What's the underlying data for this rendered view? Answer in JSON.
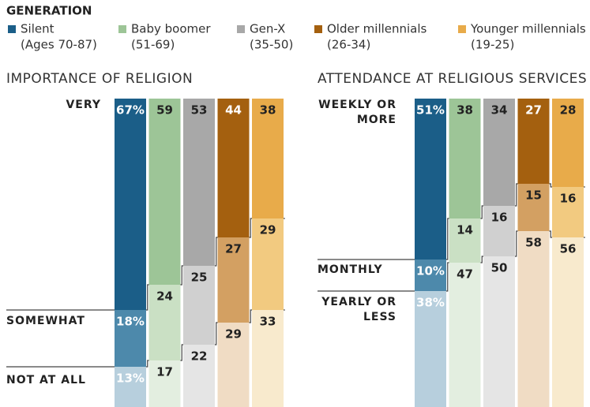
{
  "legend": {
    "title": "GENERATION",
    "entries": [
      {
        "name": "Silent",
        "ages": "(Ages 70-87)",
        "color": "#1b5e88"
      },
      {
        "name": "Baby boomer",
        "ages": "(51-69)",
        "color": "#9dc597"
      },
      {
        "name": "Gen-X",
        "ages": "(35-50)",
        "color": "#a8a8a8"
      },
      {
        "name": "Older millennials",
        "ages": "(26-34)",
        "color": "#a4600f"
      },
      {
        "name": "Younger millennials",
        "ages": "(19-25)",
        "color": "#e8ab4a"
      }
    ]
  },
  "chart_data": [
    {
      "type": "stacked-column",
      "title": "IMPORTANCE OF RELIGION",
      "series": [
        {
          "name": "VERY",
          "values": [
            67,
            59,
            53,
            44,
            38
          ],
          "value_labels": [
            "67%",
            "59",
            "53",
            "44",
            "38"
          ],
          "colors": [
            "#1b5e88",
            "#9dc597",
            "#a8a8a8",
            "#a4600f",
            "#e8ab4a"
          ]
        },
        {
          "name": "SOMEWHAT",
          "values": [
            18,
            24,
            25,
            27,
            29
          ],
          "value_labels": [
            "18%",
            "24",
            "25",
            "27",
            "29"
          ],
          "colors": [
            "#4d89ab",
            "#cae0c4",
            "#d0d0d0",
            "#d3a062",
            "#f2ca80"
          ]
        },
        {
          "name": "NOT AT ALL",
          "values": [
            13,
            17,
            22,
            29,
            33
          ],
          "value_labels": [
            "13%",
            "17",
            "22",
            "29",
            "33"
          ],
          "colors": [
            "#b7cfdd",
            "#e3eee0",
            "#e5e5e5",
            "#f0dcc4",
            "#f8eacd"
          ]
        }
      ]
    },
    {
      "type": "stacked-column",
      "title": "ATTENDANCE AT RELIGIOUS SERVICES",
      "series": [
        {
          "name": "WEEKLY OR MORE",
          "values": [
            51,
            38,
            34,
            27,
            28
          ],
          "value_labels": [
            "51%",
            "38",
            "34",
            "27",
            "28"
          ],
          "colors": [
            "#1b5e88",
            "#9dc597",
            "#a8a8a8",
            "#a4600f",
            "#e8ab4a"
          ]
        },
        {
          "name": "MONTHLY",
          "values": [
            10,
            14,
            16,
            15,
            16
          ],
          "value_labels": [
            "10%",
            "14",
            "16",
            "15",
            "16"
          ],
          "colors": [
            "#4d89ab",
            "#cae0c4",
            "#d0d0d0",
            "#d3a062",
            "#f2ca80"
          ]
        },
        {
          "name": "YEARLY OR LESS",
          "values": [
            38,
            47,
            50,
            58,
            56
          ],
          "value_labels": [
            "38%",
            "47",
            "50",
            "58",
            "56"
          ],
          "colors": [
            "#b7cfdd",
            "#e3eee0",
            "#e5e5e5",
            "#f0dcc4",
            "#f8eacd"
          ]
        }
      ]
    }
  ]
}
